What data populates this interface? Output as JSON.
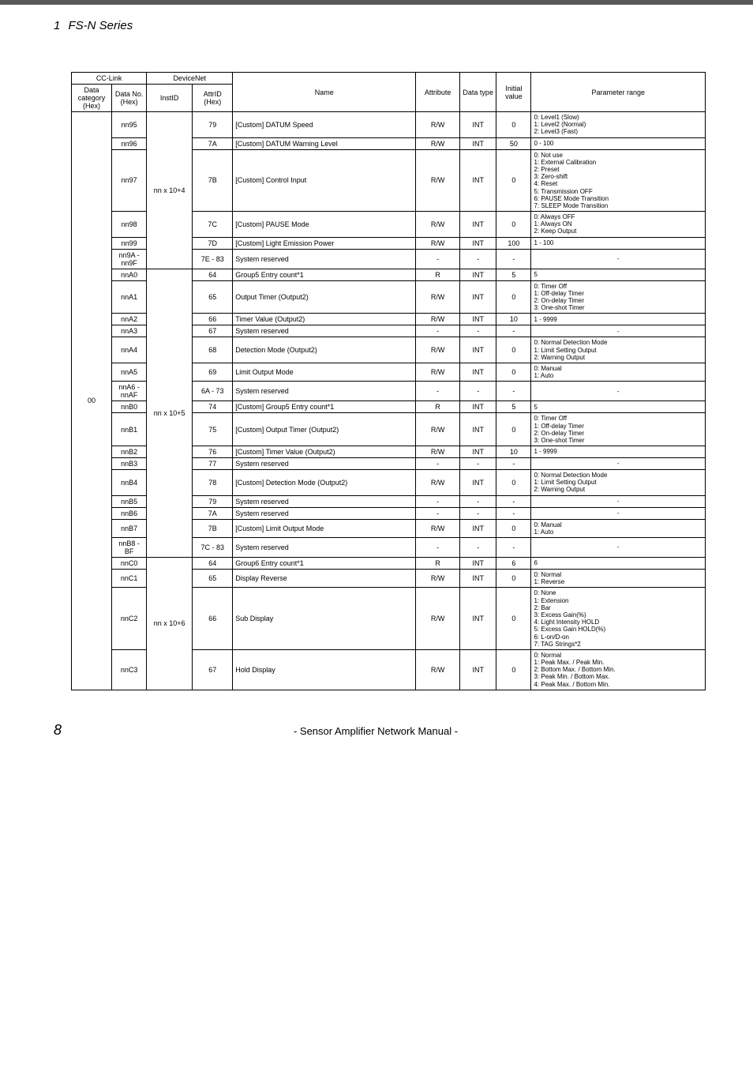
{
  "sectionTitle": {
    "num": "1",
    "text": "FS-N Series"
  },
  "footer": {
    "page": "8",
    "text": "- Sensor Amplifier Network Manual -"
  },
  "tableStyle": {
    "fontSize": 9,
    "rangeFontSize": 8,
    "borderColor": "#000000"
  },
  "colWidths": {
    "datacat": 44,
    "datano": 38,
    "instid": 50,
    "attrid": 44,
    "name": 200,
    "attr": 48,
    "dtype": 40,
    "init": 38,
    "range": 190
  },
  "header": {
    "cclink": "CC-Link",
    "devicenet": "DeviceNet",
    "datacat": "Data category (Hex)",
    "datano": "Data No. (Hex)",
    "instid": "InstID",
    "attrid": "AttrID (Hex)",
    "name": "Name",
    "attribute": "Attribute",
    "datatype": "Data type",
    "initial": "Initial value",
    "paramrange": "Parameter range"
  },
  "datacat": "00",
  "groups": [
    {
      "instid": "nn x 10+4",
      "rows": [
        {
          "datano": "nn95",
          "attrid": "79",
          "name": "[Custom] DATUM Speed",
          "attr": "R/W",
          "dtype": "INT",
          "init": "0",
          "range": "0: Level1 (Slow)\n1: Level2 (Normal)\n2: Level3 (Fast)"
        },
        {
          "datano": "nn96",
          "attrid": "7A",
          "name": "[Custom] DATUM Warning Level",
          "attr": "R/W",
          "dtype": "INT",
          "init": "50",
          "range": "0 - 100"
        },
        {
          "datano": "nn97",
          "attrid": "7B",
          "name": "[Custom] Control Input",
          "attr": "R/W",
          "dtype": "INT",
          "init": "0",
          "range": "0: Not use\n1: External Calibration\n2: Preset\n3: Zero-shift\n4: Reset\n5: Transmission OFF\n6: PAUSE Mode Transition\n7: SLEEP Mode Transition"
        },
        {
          "datano": "nn98",
          "attrid": "7C",
          "name": "[Custom] PAUSE Mode",
          "attr": "R/W",
          "dtype": "INT",
          "init": "0",
          "range": "0: Always OFF\n1: Always ON\n2: Keep Output"
        },
        {
          "datano": "nn99",
          "attrid": "7D",
          "name": "[Custom] Light Emission Power",
          "attr": "R/W",
          "dtype": "INT",
          "init": "100",
          "range": "1 - 100"
        },
        {
          "datano": "nn9A - nn9F",
          "attrid": "7E - 83",
          "name": "System reserved",
          "attr": "-",
          "dtype": "-",
          "init": "-",
          "range": "-",
          "rangeCenter": true
        }
      ]
    },
    {
      "instid": "nn x 10+5",
      "rows": [
        {
          "datano": "nnA0",
          "attrid": "64",
          "name": "Group5 Entry count*1",
          "attr": "R",
          "dtype": "INT",
          "init": "5",
          "range": "5"
        },
        {
          "datano": "nnA1",
          "attrid": "65",
          "name": "Output Timer (Output2)",
          "attr": "R/W",
          "dtype": "INT",
          "init": "0",
          "range": "0: Timer Off\n1: Off-delay Timer\n2: On-delay Timer\n3: One-shot Timer"
        },
        {
          "datano": "nnA2",
          "attrid": "66",
          "name": "Timer Value (Output2)",
          "attr": "R/W",
          "dtype": "INT",
          "init": "10",
          "range": "1 - 9999"
        },
        {
          "datano": "nnA3",
          "attrid": "67",
          "name": "System reserved",
          "attr": "-",
          "dtype": "-",
          "init": "-",
          "range": "-",
          "rangeCenter": true
        },
        {
          "datano": "nnA4",
          "attrid": "68",
          "name": "Detection Mode (Output2)",
          "attr": "R/W",
          "dtype": "INT",
          "init": "0",
          "range": "0: Normal Detection Mode\n1: Limit Setting Output\n2: Warning Output"
        },
        {
          "datano": "nnA5",
          "attrid": "69",
          "name": "Limit Output Mode",
          "attr": "R/W",
          "dtype": "INT",
          "init": "0",
          "range": "0: Manual\n1: Auto"
        },
        {
          "datano": "nnA6 - nnAF",
          "attrid": "6A - 73",
          "name": "System reserved",
          "attr": "-",
          "dtype": "-",
          "init": "-",
          "range": "-",
          "rangeCenter": true
        },
        {
          "datano": "nnB0",
          "attrid": "74",
          "name": "[Custom] Group5 Entry count*1",
          "attr": "R",
          "dtype": "INT",
          "init": "5",
          "range": "5"
        },
        {
          "datano": "nnB1",
          "attrid": "75",
          "name": "[Custom] Output Timer (Output2)",
          "attr": "R/W",
          "dtype": "INT",
          "init": "0",
          "range": "0: Timer Off\n1: Off-delay Timer\n2: On-delay Timer\n3: One-shot Timer"
        },
        {
          "datano": "nnB2",
          "attrid": "76",
          "name": "[Custom] Timer Value (Output2)",
          "attr": "R/W",
          "dtype": "INT",
          "init": "10",
          "range": "1 - 9999"
        },
        {
          "datano": "nnB3",
          "attrid": "77",
          "name": "System reserved",
          "attr": "-",
          "dtype": "-",
          "init": "-",
          "range": "-",
          "rangeCenter": true
        },
        {
          "datano": "nnB4",
          "attrid": "78",
          "name": "[Custom] Detection Mode (Output2)",
          "attr": "R/W",
          "dtype": "INT",
          "init": "0",
          "range": "0: Normal Detection Mode\n1: Limit Setting Output\n2: Warning Output"
        },
        {
          "datano": "nnB5",
          "attrid": "79",
          "name": "System reserved",
          "attr": "-",
          "dtype": "-",
          "init": "-",
          "range": "-",
          "rangeCenter": true
        },
        {
          "datano": "nnB6",
          "attrid": "7A",
          "name": "System reserved",
          "attr": "-",
          "dtype": "-",
          "init": "-",
          "range": "-",
          "rangeCenter": true
        },
        {
          "datano": "nnB7",
          "attrid": "7B",
          "name": "[Custom] Limit Output Mode",
          "attr": "R/W",
          "dtype": "INT",
          "init": "0",
          "range": "0: Manual\n1: Auto"
        },
        {
          "datano": "nnB8 - BF",
          "attrid": "7C - 83",
          "name": "System reserved",
          "attr": "-",
          "dtype": "-",
          "init": "-",
          "range": "-",
          "rangeCenter": true
        }
      ]
    },
    {
      "instid": "nn x 10+6",
      "rows": [
        {
          "datano": "nnC0",
          "attrid": "64",
          "name": "Group6 Entry count*1",
          "attr": "R",
          "dtype": "INT",
          "init": "6",
          "range": "6"
        },
        {
          "datano": "nnC1",
          "attrid": "65",
          "name": "Display Reverse",
          "attr": "R/W",
          "dtype": "INT",
          "init": "0",
          "range": "0: Normal\n1: Reverse"
        },
        {
          "datano": "nnC2",
          "attrid": "66",
          "name": "Sub Display",
          "attr": "R/W",
          "dtype": "INT",
          "init": "0",
          "range": "0: None\n1: Extension\n2: Bar\n3: Excess Gain(%)\n4: Light Intensity HOLD\n5: Excess Gain HOLD(%)\n6: L-on/D-on\n7: TAG Strings*2"
        },
        {
          "datano": "nnC3",
          "attrid": "67",
          "name": "Hold Display",
          "attr": "R/W",
          "dtype": "INT",
          "init": "0",
          "range": "0: Normal\n1: Peak Max. / Peak Min.\n2: Bottom Max. / Bottom Min.\n3: Peak Min. / Bottom Max.\n4: Peak Max. / Bottom Min."
        }
      ]
    }
  ]
}
